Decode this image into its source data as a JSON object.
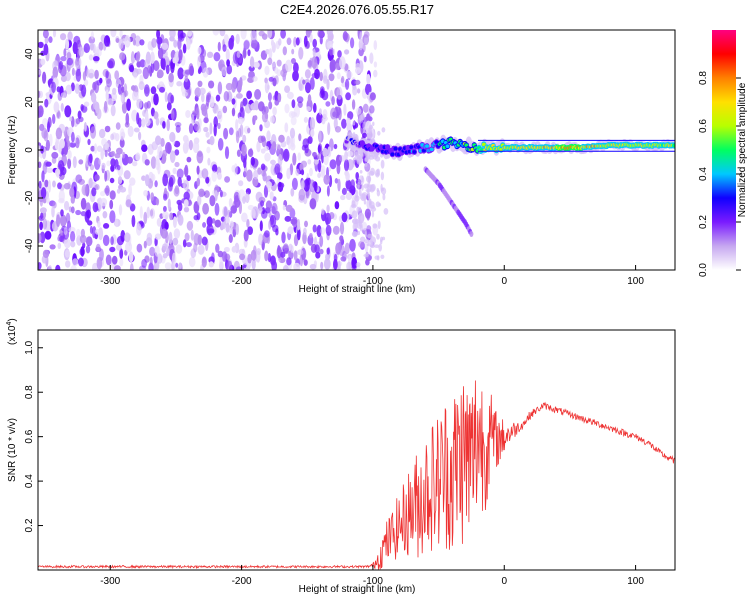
{
  "title": "C2E4.2026.076.05.55.R17",
  "chart_data": [
    {
      "type": "heatmap",
      "name": "spectrogram",
      "xlabel": "Height of straight line (km)",
      "ylabel": "Frequency (Hz)",
      "xlim": [
        -355,
        130
      ],
      "ylim": [
        -50,
        50
      ],
      "xticks": [
        -300,
        -200,
        -100,
        0,
        100
      ],
      "yticks": [
        -40,
        -20,
        0,
        20,
        40
      ],
      "noise_region_x": [
        -355,
        -98
      ],
      "signal_track": {
        "x": [
          -120,
          -110,
          -100,
          -90,
          -80,
          -70,
          -60,
          -50,
          -40,
          -30,
          -20,
          -10,
          0,
          20,
          40,
          60,
          80,
          100,
          130
        ],
        "freq": [
          4,
          2,
          1,
          0,
          -1,
          0,
          1,
          2,
          3,
          2,
          1,
          1,
          1,
          1,
          1,
          1,
          2,
          2,
          2
        ],
        "amplitude": [
          0.25,
          0.3,
          0.3,
          0.3,
          0.35,
          0.4,
          0.45,
          0.5,
          0.55,
          0.6,
          0.7,
          0.75,
          0.8,
          0.85,
          0.9,
          0.9,
          0.85,
          0.8,
          0.75
        ]
      },
      "side_branch": {
        "x": [
          -60,
          -50,
          -40,
          -30,
          -25
        ],
        "freq": [
          -8,
          -14,
          -22,
          -30,
          -35
        ]
      },
      "colorbar": {
        "label": "Normalized spectral amplitude",
        "range": [
          0,
          1
        ],
        "ticks": [
          "0.0",
          "0.2",
          "0.4",
          "0.6",
          "0.8"
        ],
        "colors": [
          "#ffffff",
          "#c6a7f0",
          "#7a1bff",
          "#1000ff",
          "#00c8ff",
          "#00ff60",
          "#b8ff00",
          "#ffe000",
          "#ff8000",
          "#ff0000",
          "#ff0080"
        ]
      }
    },
    {
      "type": "line",
      "name": "snr",
      "xlabel": "Height of straight line (km)",
      "ylabel": "SNR (10 * v/v)",
      "y_multiplier": "(x10",
      "y_multiplier_exp": "4",
      "y_multiplier_close": ")",
      "xlim": [
        -355,
        130
      ],
      "ylim": [
        0,
        1.08
      ],
      "xticks": [
        -300,
        -200,
        -100,
        0,
        100
      ],
      "yticks": [
        0.2,
        0.4,
        0.6,
        0.8,
        1.0
      ],
      "color": "#ee3333",
      "x": [
        -355,
        -300,
        -250,
        -200,
        -150,
        -105,
        -100,
        -95,
        -90,
        -85,
        -80,
        -75,
        -70,
        -65,
        -60,
        -55,
        -50,
        -45,
        -40,
        -35,
        -30,
        -25,
        -20,
        -15,
        -10,
        -5,
        0,
        5,
        10,
        15,
        20,
        25,
        30,
        35,
        40,
        50,
        60,
        70,
        80,
        90,
        100,
        110,
        120,
        130
      ],
      "y": [
        0.015,
        0.015,
        0.015,
        0.015,
        0.015,
        0.015,
        0.02,
        0.06,
        0.12,
        0.16,
        0.2,
        0.24,
        0.28,
        0.3,
        0.36,
        0.38,
        0.4,
        0.45,
        0.42,
        0.5,
        0.52,
        0.48,
        0.62,
        0.55,
        0.6,
        0.58,
        0.6,
        0.62,
        0.64,
        0.66,
        0.7,
        0.72,
        0.74,
        0.73,
        0.72,
        0.7,
        0.68,
        0.66,
        0.64,
        0.62,
        0.6,
        0.57,
        0.52,
        0.49
      ],
      "noise_amplitude": [
        0.005,
        0.005,
        0.005,
        0.005,
        0.005,
        0.005,
        0.01,
        0.06,
        0.1,
        0.12,
        0.15,
        0.18,
        0.22,
        0.26,
        0.28,
        0.3,
        0.32,
        0.35,
        0.38,
        0.4,
        0.42,
        0.4,
        0.38,
        0.3,
        0.2,
        0.12,
        0.08,
        0.05,
        0.03,
        0.02,
        0.02,
        0.015,
        0.015,
        0.015,
        0.015,
        0.015,
        0.015,
        0.015,
        0.015,
        0.015,
        0.015,
        0.015,
        0.015,
        0.015
      ]
    }
  ]
}
